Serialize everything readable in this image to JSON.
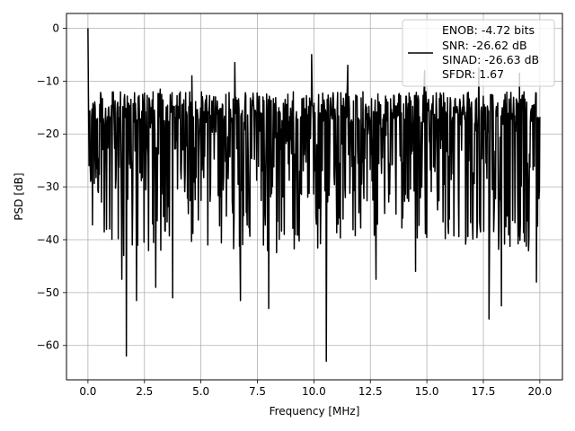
{
  "chart_data": {
    "type": "line",
    "title": "",
    "xlabel": "Frequency [MHz]",
    "ylabel": "PSD [dB]",
    "xlim": [
      -0.95,
      21.0
    ],
    "ylim": [
      -66.5,
      2.8
    ],
    "xticks": [
      0.0,
      2.5,
      5.0,
      7.5,
      10.0,
      12.5,
      15.0,
      17.5,
      20.0
    ],
    "xtick_labels": [
      "0.0",
      "2.5",
      "5.0",
      "7.5",
      "10.0",
      "12.5",
      "15.0",
      "17.5",
      "20.0"
    ],
    "yticks": [
      0,
      -10,
      -20,
      -30,
      -40,
      -50,
      -60
    ],
    "ytick_labels": [
      "0",
      "−10",
      "−20",
      "−30",
      "−40",
      "−50",
      "−60"
    ],
    "grid": true,
    "legend_position": "top-right",
    "legend_lines": [
      "ENOB: -4.72 bits",
      "SNR: -26.62 dB",
      "SINAD: -26.63 dB",
      "SFDR: 1.67"
    ],
    "line_color": "#000000",
    "series": [
      {
        "sample_count": 1000,
        "x_range": [
          0.0,
          20.0
        ],
        "noise_band_top_approx_db": -12,
        "noise_band_bottom_approx_db": -33,
        "typical_deep_dip_floor_db": -40,
        "points": [
          {
            "x": 0.0,
            "y": 0.0
          },
          {
            "x": 0.05,
            "y": -26.0
          },
          {
            "x": 1.7,
            "y": -62.0
          },
          {
            "x": 1.5,
            "y": -47.5
          },
          {
            "x": 2.15,
            "y": -51.5
          },
          {
            "x": 3.0,
            "y": -49.0
          },
          {
            "x": 3.75,
            "y": -51.0
          },
          {
            "x": 6.75,
            "y": -51.5
          },
          {
            "x": 8.0,
            "y": -53.0
          },
          {
            "x": 10.55,
            "y": -63.0
          },
          {
            "x": 12.75,
            "y": -47.5
          },
          {
            "x": 14.5,
            "y": -46.0
          },
          {
            "x": 17.75,
            "y": -55.0
          },
          {
            "x": 18.3,
            "y": -52.5
          },
          {
            "x": 19.85,
            "y": -48.0
          },
          {
            "x": 3.2,
            "y": -11.5
          },
          {
            "x": 4.6,
            "y": -9.0
          },
          {
            "x": 6.5,
            "y": -6.5
          },
          {
            "x": 9.9,
            "y": -5.0
          },
          {
            "x": 11.5,
            "y": -7.0
          },
          {
            "x": 14.9,
            "y": -8.0
          },
          {
            "x": 17.3,
            "y": -7.5
          },
          {
            "x": 19.1,
            "y": -8.5
          }
        ]
      }
    ]
  }
}
